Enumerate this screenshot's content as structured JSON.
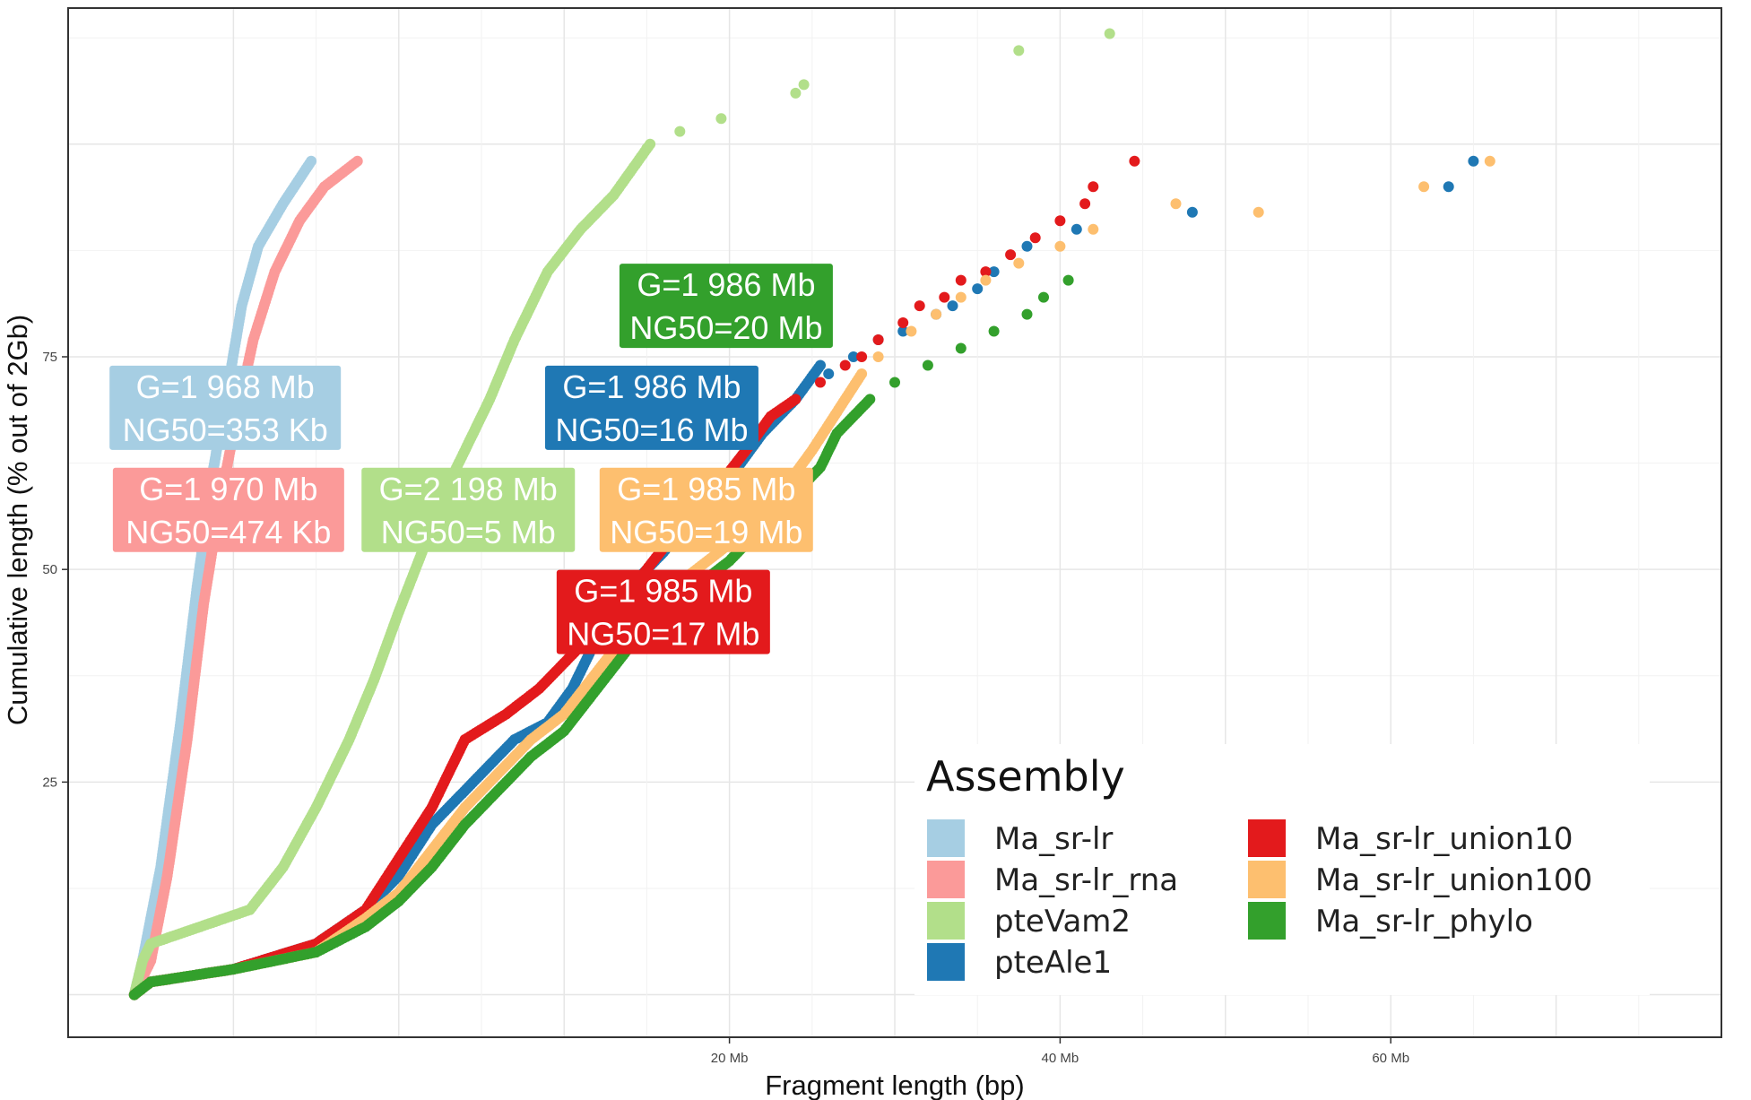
{
  "chart_data": {
    "type": "scatter",
    "title": "",
    "xlabel": "Fragment length (bp)",
    "ylabel": "Cumulative length (% out of 2Gb)",
    "xlim": [
      -20,
      80
    ],
    "ylim": [
      -5,
      116
    ],
    "x_ticks": [
      {
        "value": 20,
        "label": "20 Mb"
      },
      {
        "value": 40,
        "label": "40 Mb"
      },
      {
        "value": 60,
        "label": "60 Mb"
      }
    ],
    "y_ticks": [
      {
        "value": 25,
        "label": "25"
      },
      {
        "value": 50,
        "label": "50"
      },
      {
        "value": 75,
        "label": "75"
      }
    ],
    "legend": {
      "title": "Assembly",
      "position": "bottom-right",
      "entries": [
        {
          "label": "Ma_sr-lr",
          "color": "#a6cee3"
        },
        {
          "label": "Ma_sr-lr_rna",
          "color": "#fb9a99"
        },
        {
          "label": "pteVam2",
          "color": "#b2df8a"
        },
        {
          "label": "pteAle1",
          "color": "#1f78b4"
        },
        {
          "label": "Ma_sr-lr_union10",
          "color": "#e31a1c"
        },
        {
          "label": "Ma_sr-lr_union100",
          "color": "#fdbf6f"
        },
        {
          "label": "Ma_sr-lr_phylo",
          "color": "#33a02c"
        }
      ]
    },
    "series": [
      {
        "name": "Ma_sr-lr",
        "color": "#a6cee3",
        "curve": [
          [
            -16,
            0
          ],
          [
            -15.5,
            4
          ],
          [
            -14.4,
            15
          ],
          [
            -13.2,
            32
          ],
          [
            -12.2,
            48
          ],
          [
            -11.2,
            62
          ],
          [
            -10.2,
            73
          ],
          [
            -9.5,
            81
          ],
          [
            -8.5,
            88
          ],
          [
            -7,
            93
          ],
          [
            -5.3,
            98
          ]
        ],
        "points": []
      },
      {
        "name": "Ma_sr-lr_rna",
        "color": "#fb9a99",
        "curve": [
          [
            -16,
            0
          ],
          [
            -15,
            4
          ],
          [
            -14,
            14
          ],
          [
            -12.8,
            30
          ],
          [
            -11.8,
            46
          ],
          [
            -10.8,
            58
          ],
          [
            -9.8,
            68
          ],
          [
            -8.8,
            77
          ],
          [
            -7.5,
            85
          ],
          [
            -6,
            91
          ],
          [
            -4.5,
            95
          ],
          [
            -2.5,
            98
          ]
        ],
        "points": []
      },
      {
        "name": "pteVam2",
        "color": "#b2df8a",
        "curve": [
          [
            -16,
            0
          ],
          [
            -15.5,
            4
          ],
          [
            -15,
            6
          ],
          [
            -12,
            8
          ],
          [
            -9,
            10
          ],
          [
            -7,
            15
          ],
          [
            -5,
            22
          ],
          [
            -3,
            30
          ],
          [
            -1.5,
            37
          ],
          [
            0,
            45
          ],
          [
            1,
            50
          ],
          [
            3,
            60
          ],
          [
            5.5,
            70
          ],
          [
            7,
            77
          ],
          [
            9,
            85
          ],
          [
            11,
            90
          ],
          [
            13,
            94
          ],
          [
            15.2,
            100
          ]
        ],
        "points": [
          [
            15,
            99.5
          ],
          [
            17,
            101.5
          ],
          [
            19.5,
            103
          ],
          [
            24,
            106
          ],
          [
            24.5,
            107
          ],
          [
            37.5,
            111
          ],
          [
            43,
            113
          ]
        ]
      },
      {
        "name": "pteAle1",
        "color": "#1f78b4",
        "curve": [
          [
            -16,
            0
          ],
          [
            -15,
            1.5
          ],
          [
            -10,
            3
          ],
          [
            -5,
            6
          ],
          [
            -2,
            10
          ],
          [
            0,
            14
          ],
          [
            2,
            20
          ],
          [
            5,
            26
          ],
          [
            7,
            30
          ],
          [
            9,
            32
          ],
          [
            10.5,
            36
          ],
          [
            12,
            42
          ],
          [
            14,
            48
          ],
          [
            16,
            52
          ],
          [
            18,
            57
          ],
          [
            20.5,
            62
          ],
          [
            22,
            66
          ],
          [
            24,
            70
          ],
          [
            25.5,
            74
          ]
        ],
        "points": [
          [
            26,
            73
          ],
          [
            27.5,
            75
          ],
          [
            29,
            77
          ],
          [
            30.5,
            78
          ],
          [
            32.5,
            80
          ],
          [
            33.5,
            81
          ],
          [
            35,
            83
          ],
          [
            36,
            85
          ],
          [
            38,
            88
          ],
          [
            41,
            90
          ],
          [
            48,
            92
          ],
          [
            65,
            98
          ],
          [
            63.5,
            95
          ]
        ]
      },
      {
        "name": "Ma_sr-lr_union10",
        "color": "#e31a1c",
        "curve": [
          [
            -16,
            0
          ],
          [
            -15,
            1.5
          ],
          [
            -10,
            3
          ],
          [
            -5,
            6
          ],
          [
            -2,
            10
          ],
          [
            0,
            16
          ],
          [
            2,
            22
          ],
          [
            4,
            30
          ],
          [
            6.5,
            33
          ],
          [
            8.5,
            36
          ],
          [
            10,
            39
          ],
          [
            11.5,
            42
          ],
          [
            13,
            45
          ],
          [
            15,
            50
          ],
          [
            17,
            55
          ],
          [
            19,
            59
          ],
          [
            21,
            64
          ],
          [
            22.5,
            68
          ],
          [
            24,
            70
          ]
        ],
        "points": [
          [
            25.5,
            72
          ],
          [
            27,
            74
          ],
          [
            28,
            75
          ],
          [
            29,
            77
          ],
          [
            30.5,
            79
          ],
          [
            31.5,
            81
          ],
          [
            33,
            82
          ],
          [
            34,
            84
          ],
          [
            35.5,
            85
          ],
          [
            37,
            87
          ],
          [
            38.5,
            89
          ],
          [
            40,
            91
          ],
          [
            41.5,
            93
          ],
          [
            42,
            95
          ],
          [
            44.5,
            98
          ]
        ]
      },
      {
        "name": "Ma_sr-lr_union100",
        "color": "#fdbf6f",
        "curve": [
          [
            -16,
            0
          ],
          [
            -15,
            1.5
          ],
          [
            -10,
            3
          ],
          [
            -5,
            5
          ],
          [
            -2,
            9
          ],
          [
            0,
            12
          ],
          [
            2,
            17
          ],
          [
            4,
            22
          ],
          [
            6,
            26
          ],
          [
            8,
            30
          ],
          [
            10,
            33
          ],
          [
            12,
            38
          ],
          [
            14,
            43
          ],
          [
            16,
            47
          ],
          [
            18,
            50
          ],
          [
            20,
            53
          ],
          [
            22,
            57
          ],
          [
            23.5,
            60
          ],
          [
            25,
            64
          ],
          [
            26,
            67
          ],
          [
            27,
            70
          ],
          [
            28,
            73
          ]
        ],
        "points": [
          [
            29,
            75
          ],
          [
            31,
            78
          ],
          [
            32.5,
            80
          ],
          [
            34,
            82
          ],
          [
            35.5,
            84
          ],
          [
            37.5,
            86
          ],
          [
            40,
            88
          ],
          [
            42,
            90
          ],
          [
            47,
            93
          ],
          [
            52,
            92
          ],
          [
            62,
            95
          ],
          [
            66,
            98
          ]
        ]
      },
      {
        "name": "Ma_sr-lr_phylo",
        "color": "#33a02c",
        "curve": [
          [
            -16,
            0
          ],
          [
            -15,
            1.5
          ],
          [
            -10,
            3
          ],
          [
            -5,
            5
          ],
          [
            -2,
            8
          ],
          [
            0,
            11
          ],
          [
            2,
            15
          ],
          [
            4,
            20
          ],
          [
            6,
            24
          ],
          [
            8,
            28
          ],
          [
            10,
            31
          ],
          [
            12,
            36
          ],
          [
            14,
            41
          ],
          [
            16,
            45
          ],
          [
            18,
            48
          ],
          [
            20,
            51
          ],
          [
            22,
            55
          ],
          [
            24,
            59
          ],
          [
            25.5,
            62
          ],
          [
            26.5,
            66
          ],
          [
            27.5,
            68
          ],
          [
            28.5,
            70
          ]
        ],
        "points": [
          [
            30,
            72
          ],
          [
            32,
            74
          ],
          [
            34,
            76
          ],
          [
            36,
            78
          ],
          [
            38,
            80
          ],
          [
            39,
            82
          ],
          [
            40.5,
            84
          ]
        ]
      }
    ],
    "annotations": [
      {
        "lines": [
          "G=1 968 Mb",
          "NG50=353 Kb"
        ],
        "color": "#a6cee3",
        "x": -10.5,
        "y": 69,
        "anchor_series": "Ma_sr-lr"
      },
      {
        "lines": [
          "G=1 970 Mb",
          "NG50=474 Kb"
        ],
        "color": "#fb9a99",
        "x": -10.3,
        "y": 57,
        "anchor_series": "Ma_sr-lr_rna"
      },
      {
        "lines": [
          "G=2 198 Mb",
          "NG50=5 Mb"
        ],
        "color": "#b2df8a",
        "x": 4.2,
        "y": 57,
        "anchor_series": "pteVam2"
      },
      {
        "lines": [
          "G=1 986 Mb",
          "NG50=20 Mb"
        ],
        "color": "#33a02c",
        "x": 19.8,
        "y": 81,
        "anchor_series": "Ma_sr-lr_phylo"
      },
      {
        "lines": [
          "G=1 986 Mb",
          "NG50=16 Mb"
        ],
        "color": "#1f78b4",
        "x": 15.3,
        "y": 69,
        "anchor_series": "pteAle1"
      },
      {
        "lines": [
          "G=1 985 Mb",
          "NG50=19 Mb"
        ],
        "color": "#fdbf6f",
        "x": 18.6,
        "y": 57,
        "anchor_series": "Ma_sr-lr_union100"
      },
      {
        "lines": [
          "G=1 985 Mb",
          "NG50=17 Mb"
        ],
        "color": "#e31a1c",
        "x": 16.0,
        "y": 45,
        "anchor_series": "Ma_sr-lr_union10"
      }
    ]
  }
}
